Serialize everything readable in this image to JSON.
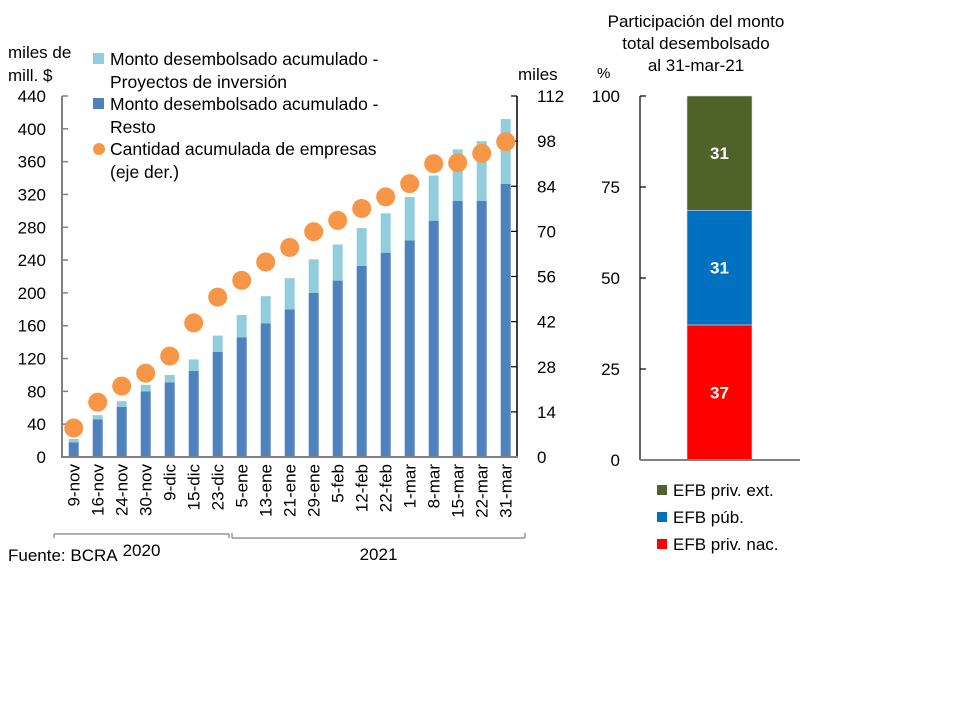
{
  "chart_data": [
    {
      "type": "bar",
      "stacked": true,
      "left_axis_label": "miles de\nmill. $",
      "right_axis_label": "miles",
      "categories": [
        "9-nov",
        "16-nov",
        "24-nov",
        "30-nov",
        "9-dic",
        "15-dic",
        "23-dic",
        "5-ene",
        "13-ene",
        "21-ene",
        "29-ene",
        "5-feb",
        "12-feb",
        "22-feb",
        "1-mar",
        "8-mar",
        "15-mar",
        "22-mar",
        "31-mar"
      ],
      "category_groups": [
        {
          "label": "2020",
          "from": 0,
          "to": 6
        },
        {
          "label": "2021",
          "from": 7,
          "to": 18
        }
      ],
      "ylim_left": [
        0,
        440
      ],
      "yticks_left": [
        0,
        40,
        80,
        120,
        160,
        200,
        240,
        280,
        320,
        360,
        400,
        440
      ],
      "ylim_right": [
        0,
        112
      ],
      "yticks_right": [
        0,
        14,
        28,
        42,
        56,
        70,
        84,
        98,
        112
      ],
      "series": [
        {
          "name": "Monto desembolsado acumulado - Resto",
          "legend": [
            "Monto desembolsado acumulado -",
            "Resto"
          ],
          "kind": "bar",
          "axis": "left",
          "color": "#4F81BD",
          "values": [
            18,
            46,
            61,
            80,
            91,
            105,
            128,
            146,
            163,
            180,
            200,
            215,
            233,
            249,
            264,
            288,
            312,
            312,
            333
          ]
        },
        {
          "name": "Monto desembolsado acumulado - Proyectos de inversión",
          "legend": [
            "Monto desembolsado acumulado -",
            "Proyectos de inversión"
          ],
          "kind": "bar",
          "axis": "left",
          "color": "#92CDDC",
          "values": [
            4,
            5,
            7,
            8,
            9,
            14,
            20,
            27,
            33,
            38,
            41,
            44,
            46,
            48,
            53,
            55,
            63,
            73,
            79
          ]
        },
        {
          "name": "Cantidad acumulada de empresas (eje der.)",
          "legend": [
            "Cantidad acumulada de empresas",
            "(eje der.)"
          ],
          "kind": "scatter",
          "axis": "right",
          "color": "#F79646",
          "values": [
            9.0,
            17.0,
            22.0,
            26.0,
            31.3,
            41.6,
            49.6,
            54.8,
            60.5,
            65.0,
            69.9,
            73.4,
            77.1,
            80.7,
            84.8,
            91.0,
            91.3,
            94.2,
            97.8
          ]
        }
      ],
      "source": "Fuente: BCRA"
    },
    {
      "type": "bar",
      "stacked": true,
      "title": [
        "Participación del monto",
        "total desembolsado",
        "al 31-mar-21"
      ],
      "ylabel": "%",
      "ylim": [
        0,
        100
      ],
      "yticks": [
        0,
        25,
        50,
        75,
        100
      ],
      "segments": [
        {
          "name": "EFB priv. nac.",
          "value": 37.1,
          "label": "37",
          "color": "#FF0000"
        },
        {
          "name": "EFB púb.",
          "value": 31.5,
          "label": "31",
          "color": "#0070C0"
        },
        {
          "name": "EFB priv. ext.",
          "value": 31.4,
          "label": "31",
          "color": "#4F6228"
        }
      ],
      "legend_order": [
        "EFB priv. ext.",
        "EFB púb.",
        "EFB priv. nac."
      ]
    }
  ]
}
